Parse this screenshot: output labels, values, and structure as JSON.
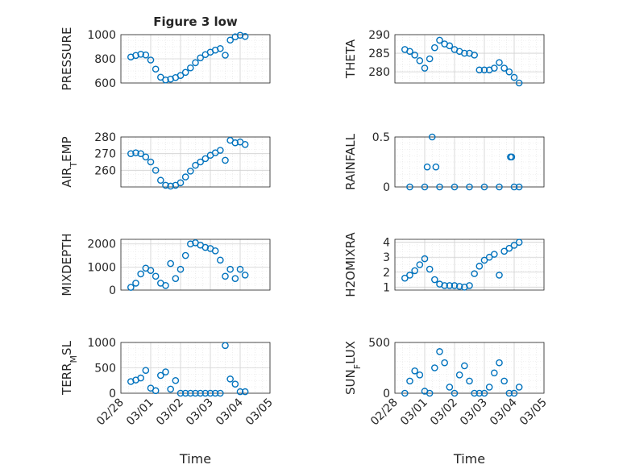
{
  "figure": {
    "title": "Figure 3 low",
    "xlabel": "Time",
    "date_ticks": [
      "02/28",
      "03/01",
      "03/02",
      "03/03",
      "03/04",
      "03/05"
    ],
    "marker_color": "#0072BD"
  },
  "chart_data": [
    {
      "type": "scatter",
      "title": "Figure 3 low",
      "ylabel": "PRESSURE",
      "ylim": [
        600,
        1000
      ],
      "yticks": [
        600,
        800,
        1000
      ],
      "x": [
        "2/28 08:00",
        "2/28 12:00",
        "2/28 16:00",
        "2/28 20:00",
        "3/01 00:00",
        "3/01 04:00",
        "3/01 08:00",
        "3/01 12:00",
        "3/01 16:00",
        "3/01 20:00",
        "3/02 00:00",
        "3/02 04:00",
        "3/02 08:00",
        "3/02 12:00",
        "3/02 16:00",
        "3/02 20:00",
        "3/03 00:00",
        "3/03 04:00",
        "3/03 08:00",
        "3/03 12:00",
        "3/03 16:00",
        "3/03 20:00",
        "3/04 00:00",
        "3/04 04:00"
      ],
      "y": [
        815,
        828,
        838,
        832,
        790,
        715,
        648,
        625,
        632,
        645,
        662,
        688,
        725,
        768,
        808,
        835,
        855,
        872,
        885,
        830,
        955,
        982,
        995,
        985
      ]
    },
    {
      "type": "scatter",
      "ylabel": "THETA",
      "ylim": [
        277,
        290
      ],
      "yticks": [
        280,
        285,
        290
      ],
      "x": [
        "2/28 08:00",
        "2/28 12:00",
        "2/28 16:00",
        "2/28 20:00",
        "3/01 00:00",
        "3/01 04:00",
        "3/01 08:00",
        "3/01 12:00",
        "3/01 16:00",
        "3/01 20:00",
        "3/02 00:00",
        "3/02 04:00",
        "3/02 08:00",
        "3/02 12:00",
        "3/02 16:00",
        "3/02 20:00",
        "3/03 00:00",
        "3/03 04:00",
        "3/03 08:00",
        "3/03 12:00",
        "3/03 16:00",
        "3/03 20:00",
        "3/04 00:00",
        "3/04 04:00"
      ],
      "y": [
        286,
        285.5,
        284.5,
        283,
        281,
        283.5,
        286.5,
        288.5,
        287.5,
        287,
        286,
        285.5,
        285,
        285,
        284.5,
        280.5,
        280.5,
        280.5,
        281,
        282.5,
        281,
        280,
        278.5,
        277
      ]
    },
    {
      "type": "scatter",
      "ylabel": "AIR_TEMP",
      "ylim": [
        250,
        280
      ],
      "yticks": [
        260,
        270,
        280
      ],
      "x": [
        "2/28 08:00",
        "2/28 12:00",
        "2/28 16:00",
        "2/28 20:00",
        "3/01 00:00",
        "3/01 04:00",
        "3/01 08:00",
        "3/01 12:00",
        "3/01 16:00",
        "3/01 20:00",
        "3/02 00:00",
        "3/02 04:00",
        "3/02 08:00",
        "3/02 12:00",
        "3/02 16:00",
        "3/02 20:00",
        "3/03 00:00",
        "3/03 04:00",
        "3/03 08:00",
        "3/03 12:00",
        "3/03 16:00",
        "3/03 20:00",
        "3/04 00:00",
        "3/04 04:00"
      ],
      "y": [
        270,
        270.5,
        270,
        268,
        265,
        260,
        254,
        251,
        250.5,
        251,
        252.5,
        256,
        259.5,
        263,
        265,
        267,
        269,
        270.5,
        272,
        266,
        278,
        276.5,
        277,
        275.5
      ]
    },
    {
      "type": "scatter",
      "ylabel": "RAINFALL",
      "ylim": [
        0,
        0.5
      ],
      "yticks": [
        0,
        0.5
      ],
      "x": [
        "2/28 12:00",
        "3/01 00:00",
        "3/01 12:00",
        "3/02 00:00",
        "3/02 12:00",
        "3/03 00:00",
        "3/03 12:00",
        "3/04 00:00",
        "3/04 04:00",
        "3/01 02:00",
        "3/01 06:00",
        "3/01 09:00",
        "3/03 21:00",
        "3/03 22:00"
      ],
      "y": [
        0,
        0,
        0,
        0,
        0,
        0,
        0,
        0,
        0,
        0.2,
        0.5,
        0.2,
        0.3,
        0.3
      ]
    },
    {
      "type": "scatter",
      "ylabel": "MIXDEPTH",
      "ylim": [
        0,
        2200
      ],
      "yticks": [
        0,
        1000,
        2000
      ],
      "x": [
        "2/28 08:00",
        "2/28 12:00",
        "2/28 16:00",
        "2/28 20:00",
        "3/01 00:00",
        "3/01 04:00",
        "3/01 08:00",
        "3/01 12:00",
        "3/01 16:00",
        "3/01 20:00",
        "3/02 00:00",
        "3/02 04:00",
        "3/02 08:00",
        "3/02 12:00",
        "3/02 16:00",
        "3/02 20:00",
        "3/03 00:00",
        "3/03 04:00",
        "3/03 08:00",
        "3/03 12:00",
        "3/03 16:00",
        "3/03 20:00",
        "3/04 00:00",
        "3/04 04:00"
      ],
      "y": [
        120,
        300,
        700,
        950,
        850,
        600,
        300,
        200,
        1150,
        500,
        900,
        1500,
        2000,
        2050,
        1950,
        1850,
        1800,
        1700,
        1300,
        600,
        900,
        500,
        900,
        650
      ]
    },
    {
      "type": "scatter",
      "ylabel": "H2OMIXRA",
      "ylim": [
        0.8,
        4.2
      ],
      "yticks": [
        1,
        2,
        3,
        4
      ],
      "x": [
        "2/28 08:00",
        "2/28 12:00",
        "2/28 16:00",
        "2/28 20:00",
        "3/01 00:00",
        "3/01 04:00",
        "3/01 08:00",
        "3/01 12:00",
        "3/01 16:00",
        "3/01 20:00",
        "3/02 00:00",
        "3/02 04:00",
        "3/02 08:00",
        "3/02 12:00",
        "3/02 16:00",
        "3/02 20:00",
        "3/03 00:00",
        "3/03 04:00",
        "3/03 08:00",
        "3/03 12:00",
        "3/03 16:00",
        "3/03 20:00",
        "3/04 00:00",
        "3/04 04:00"
      ],
      "y": [
        1.6,
        1.8,
        2.1,
        2.5,
        2.9,
        2.2,
        1.5,
        1.2,
        1.1,
        1.1,
        1.1,
        1.05,
        1.0,
        1.1,
        1.9,
        2.4,
        2.8,
        3.0,
        3.2,
        1.8,
        3.4,
        3.6,
        3.8,
        4.0
      ]
    },
    {
      "type": "scatter",
      "ylabel": "TERR_MSL",
      "ylim": [
        0,
        1000
      ],
      "yticks": [
        0,
        500,
        1000
      ],
      "x": [
        "2/28 08:00",
        "2/28 12:00",
        "2/28 16:00",
        "2/28 20:00",
        "3/01 00:00",
        "3/01 04:00",
        "3/01 08:00",
        "3/01 12:00",
        "3/01 16:00",
        "3/01 20:00",
        "3/02 00:00",
        "3/02 04:00",
        "3/02 08:00",
        "3/02 12:00",
        "3/02 16:00",
        "3/02 20:00",
        "3/03 00:00",
        "3/03 04:00",
        "3/03 08:00",
        "3/03 12:00",
        "3/03 16:00",
        "3/03 20:00",
        "3/04 00:00",
        "3/04 04:00"
      ],
      "y": [
        230,
        260,
        300,
        450,
        100,
        50,
        350,
        420,
        80,
        250,
        0,
        0,
        0,
        0,
        0,
        0,
        0,
        0,
        0,
        940,
        280,
        180,
        30,
        30
      ]
    },
    {
      "type": "scatter",
      "ylabel": "SUN_FLUX",
      "ylim": [
        0,
        500
      ],
      "yticks": [
        0,
        500
      ],
      "x": [
        "2/28 08:00",
        "2/28 12:00",
        "2/28 16:00",
        "2/28 20:00",
        "3/01 00:00",
        "3/01 04:00",
        "3/01 08:00",
        "3/01 12:00",
        "3/01 16:00",
        "3/01 20:00",
        "3/02 00:00",
        "3/02 04:00",
        "3/02 08:00",
        "3/02 12:00",
        "3/02 16:00",
        "3/02 20:00",
        "3/03 00:00",
        "3/03 04:00",
        "3/03 08:00",
        "3/03 12:00",
        "3/03 16:00",
        "3/03 20:00",
        "3/04 00:00",
        "3/04 04:00"
      ],
      "y": [
        0,
        120,
        220,
        180,
        20,
        0,
        250,
        410,
        300,
        60,
        0,
        180,
        270,
        120,
        0,
        0,
        0,
        60,
        200,
        300,
        120,
        0,
        0,
        60
      ]
    }
  ]
}
